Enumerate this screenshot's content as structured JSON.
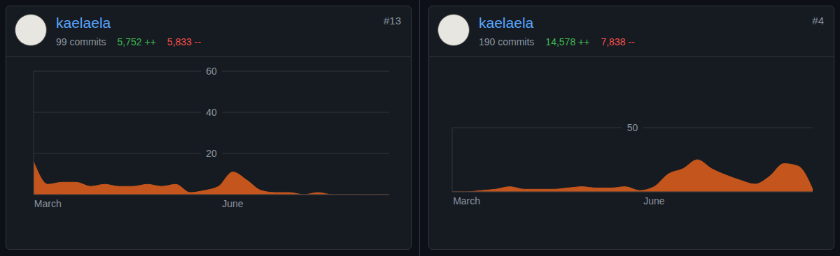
{
  "chart_data": [
    {
      "type": "area",
      "title": "kaelaela",
      "annotations": {
        "rank": "#13",
        "commits": "99 commits",
        "additions": "5,752 ++",
        "deletions": "5,833 --"
      },
      "categories": [
        null,
        "March",
        null,
        null,
        null,
        null,
        null,
        null,
        null,
        null,
        null,
        null,
        null,
        null,
        "June",
        null,
        null,
        null,
        null,
        null,
        null,
        null,
        null,
        null,
        null,
        null
      ],
      "values": [
        16,
        5,
        6,
        6,
        4,
        5,
        4,
        4,
        5,
        4,
        5,
        1,
        2,
        4,
        11,
        7,
        2,
        1,
        1,
        0,
        1,
        0,
        0,
        0,
        0,
        0
      ],
      "color": "#c4561d",
      "ylim": [
        0,
        60
      ],
      "yticks": [
        20,
        40,
        60
      ],
      "grid": true
    },
    {
      "type": "area",
      "title": "kaelaela",
      "annotations": {
        "rank": "#4",
        "commits": "190 commits",
        "additions": "14,578 ++",
        "deletions": "7,838 --"
      },
      "categories": [
        null,
        "March",
        null,
        null,
        null,
        null,
        null,
        null,
        null,
        null,
        null,
        null,
        null,
        null,
        "June",
        null,
        null,
        null,
        null,
        null,
        null,
        null,
        null,
        null,
        null,
        null
      ],
      "values": [
        0,
        0,
        1,
        2,
        4,
        2,
        2,
        2,
        3,
        4,
        3,
        3,
        4,
        1,
        4,
        14,
        18,
        25,
        18,
        13,
        9,
        6,
        12,
        22,
        20,
        2
      ],
      "color": "#c4561d",
      "ylim": [
        0,
        50
      ],
      "yticks": [
        50
      ],
      "grid": true
    }
  ]
}
